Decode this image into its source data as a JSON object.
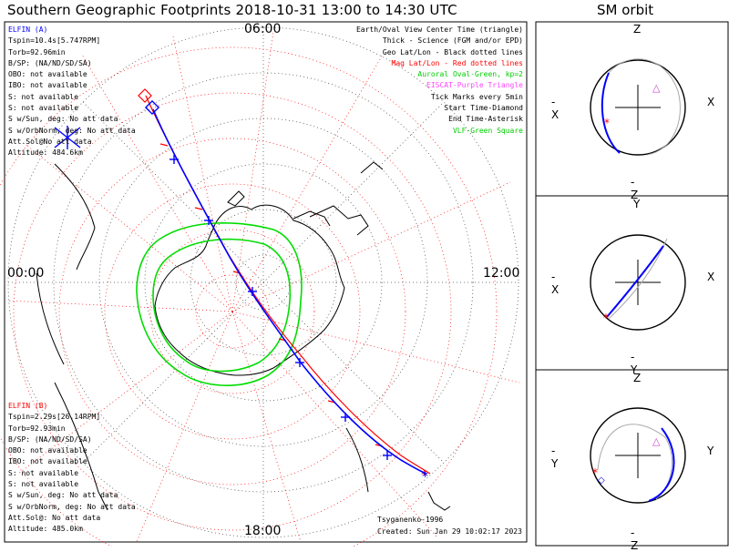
{
  "title": "Southern Geographic Footprints 2018-10-31 13:00 to 14:30 UTC",
  "orbit_title": "SM orbit",
  "time_labels": {
    "top": "06:00",
    "left": "00:00",
    "right": "12:00",
    "bottom": "18:00"
  },
  "elfin_a": {
    "name": "ELFIN (A)",
    "color": "#0000ff",
    "lines": [
      "Tspin=10.4s[5.747RPM]",
      "Torb=92.96min",
      "B/SP: (NA/ND/SD/SA)",
      "OBO: not available",
      "IBO: not available",
      "S: not available",
      "S: not available",
      "S w/Sun, deg: No att data",
      "S w/OrbNorm, deg: No att data",
      "Att.Sol@No att data",
      "Altitude: 484.6km"
    ]
  },
  "elfin_b": {
    "name": "ELFIN (B)",
    "color": "#ff0000",
    "lines": [
      "Tspin=2.29s[26.14RPM]",
      "Torb=92.93min",
      "B/SP: (NA/ND/SD/SA)",
      "OBO: not available",
      "IBO: not available",
      "S: not available",
      "S: not available",
      "S w/Sun, deg: No att data",
      "S w/OrbNorm, deg: No att data",
      "Att.Sol@: No att data",
      "Altitude: 485.0km"
    ]
  },
  "legend": [
    {
      "text": "Earth/Oval View Center Time (triangle)",
      "color": "#000000"
    },
    {
      "text": "Thick - Science (FGM and/or EPD)",
      "color": "#000000"
    },
    {
      "text": "Geo Lat/Lon - Black dotted lines",
      "color": "#000000"
    },
    {
      "text": "Mag Lat/Lon - Red dotted lines",
      "color": "#ff0000"
    },
    {
      "text": "Auroral Oval-Green, kp=2",
      "color": "#00cc00"
    },
    {
      "text": "EISCAT-Purple Triangle",
      "color": "#ff44ff"
    },
    {
      "text": "Tick Marks every 5min",
      "color": "#000000"
    },
    {
      "text": "Start Time-Diamond",
      "color": "#000000"
    },
    {
      "text": "End Time-Asterisk",
      "color": "#000000"
    },
    {
      "text": "VLF-Green Square",
      "color": "#00cc00"
    }
  ],
  "footer": {
    "model": "Tsyganenko-1996",
    "created": "Created: Sun Jan 29 10:02:17 2023"
  },
  "orbit_panels": [
    {
      "top": "Z",
      "bottom": "-Z",
      "left": "-X",
      "right": "X"
    },
    {
      "top": "Y",
      "bottom": "-Y",
      "left": "-X",
      "right": "X"
    },
    {
      "top": "Z",
      "bottom": "-Z",
      "left": "-Y",
      "right": "Y"
    }
  ],
  "colors": {
    "track_a": "#0000ff",
    "track_b": "#ff0000",
    "oval": "#00dd00",
    "mag_grid": "#ff0000",
    "geo_grid": "#000000"
  }
}
